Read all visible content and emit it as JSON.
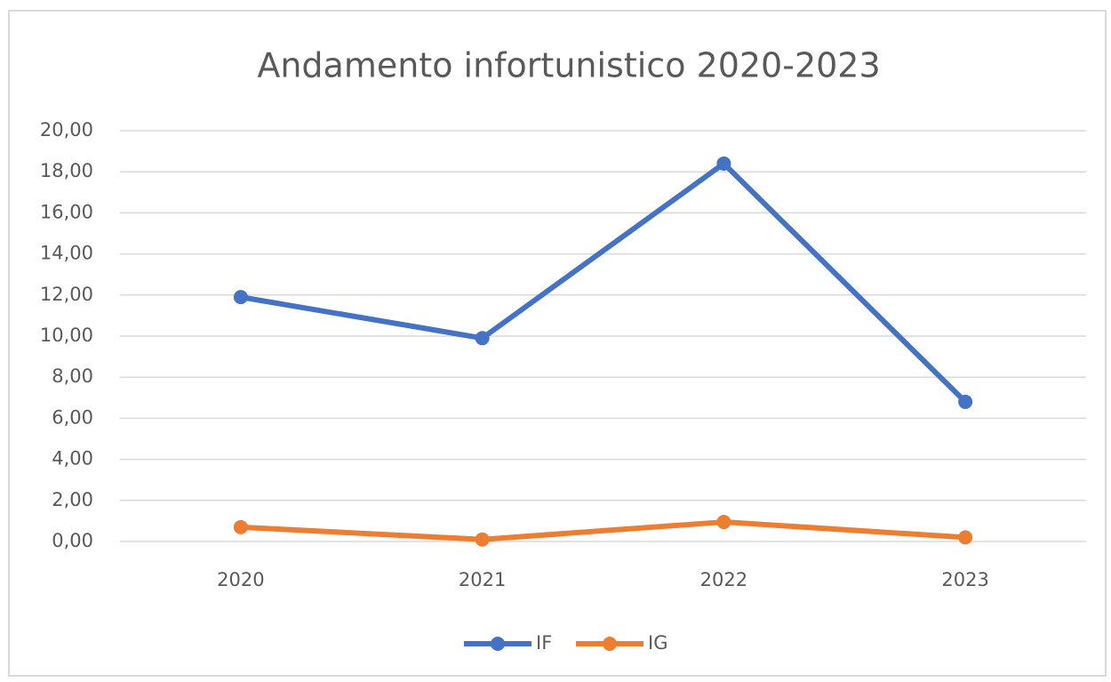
{
  "chart_data": {
    "type": "line",
    "title": "Andamento infortunistico 2020-2023",
    "categories": [
      "2020",
      "2021",
      "2022",
      "2023"
    ],
    "series": [
      {
        "name": "IF",
        "color": "#4472c4",
        "values": [
          11.9,
          9.9,
          18.4,
          6.8
        ]
      },
      {
        "name": "IG",
        "color": "#ed7d31",
        "values": [
          0.7,
          0.1,
          0.95,
          0.2
        ]
      }
    ],
    "ylim": [
      0,
      20
    ],
    "yticks": [
      {
        "value": 0,
        "label": "0,00"
      },
      {
        "value": 2,
        "label": "2,00"
      },
      {
        "value": 4,
        "label": "4,00"
      },
      {
        "value": 6,
        "label": "6,00"
      },
      {
        "value": 8,
        "label": "8,00"
      },
      {
        "value": 10,
        "label": "10,00"
      },
      {
        "value": 12,
        "label": "12,00"
      },
      {
        "value": 14,
        "label": "14,00"
      },
      {
        "value": 16,
        "label": "16,00"
      },
      {
        "value": 18,
        "label": "18,00"
      },
      {
        "value": 20,
        "label": "20,00"
      }
    ],
    "grid": true,
    "legend": "bottom"
  }
}
